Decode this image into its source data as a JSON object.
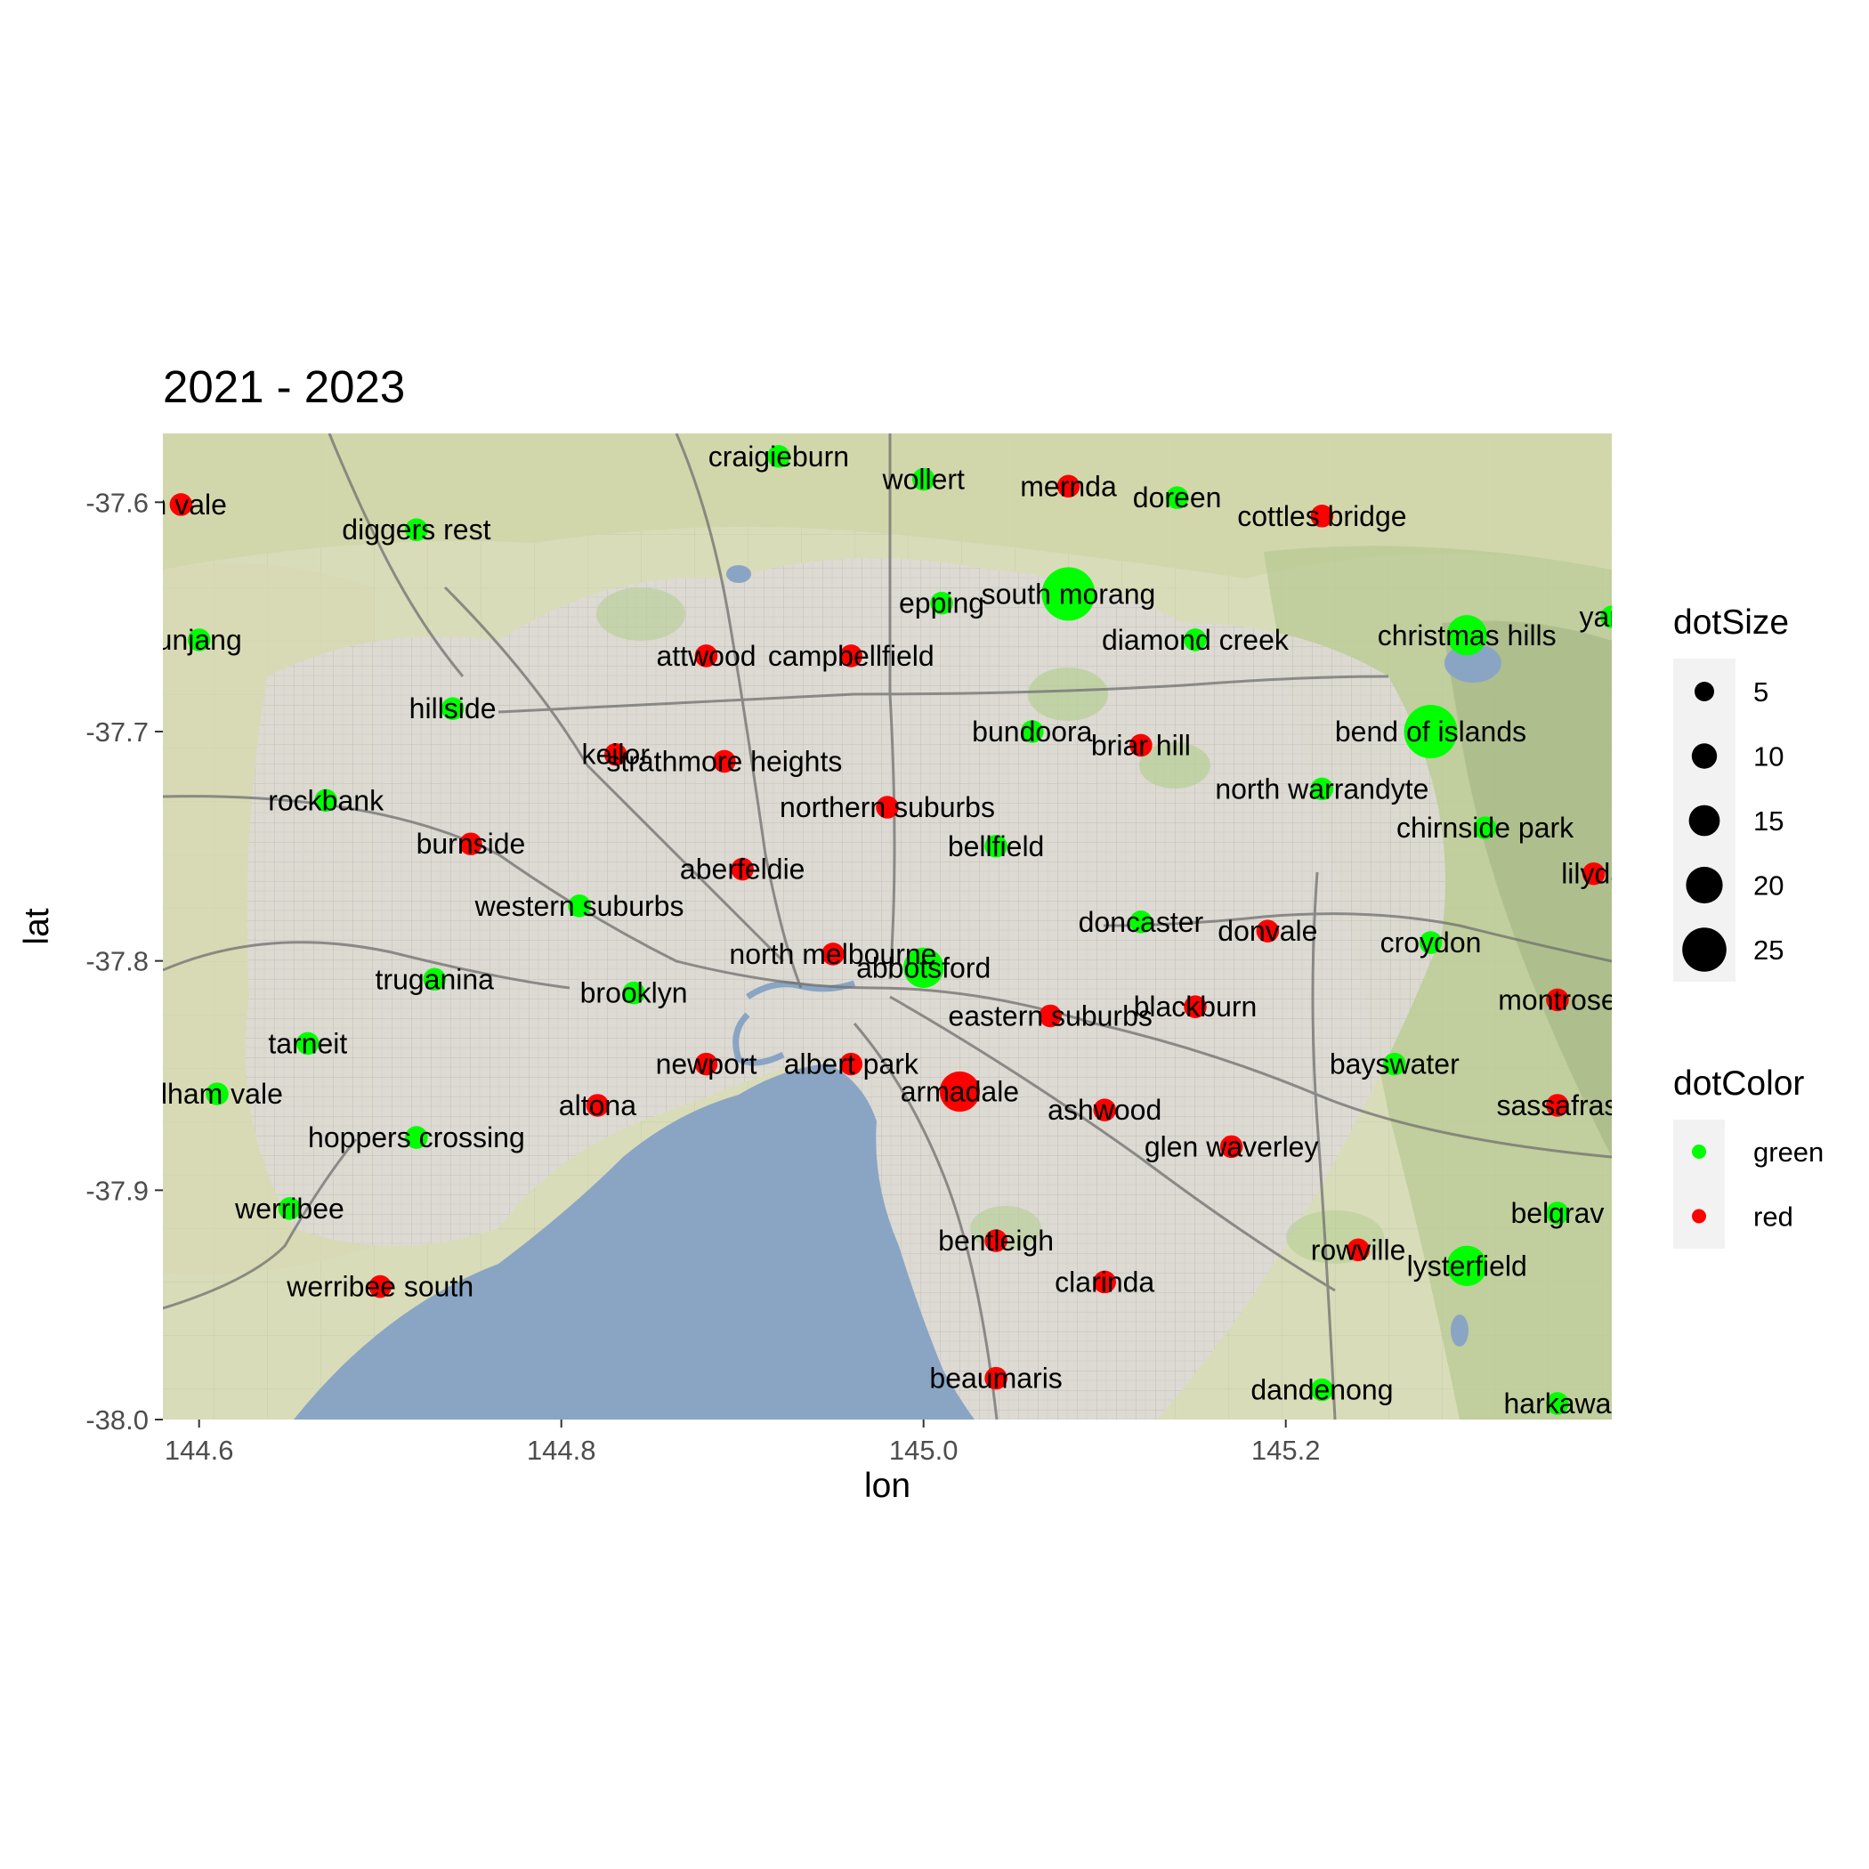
{
  "chart_data": {
    "type": "scatter",
    "title": "2021 - 2023",
    "xlabel": "lon",
    "ylabel": "lat",
    "xlim": [
      144.58,
      145.38
    ],
    "ylim": [
      -38.0,
      -37.57
    ],
    "x_ticks": [
      144.6,
      144.8,
      145.0,
      145.2
    ],
    "x_tick_labels": [
      "144.6",
      "144.8",
      "145.0",
      "145.2"
    ],
    "y_ticks": [
      -37.6,
      -37.7,
      -37.8,
      -37.9,
      -38.0
    ],
    "y_tick_labels": [
      "-37.6",
      "-37.7",
      "-37.8",
      "-37.9",
      "-38.0"
    ],
    "grid": false,
    "background": "street map of Melbourne",
    "colors": {
      "green": "#00ff00",
      "red": "#ff0000",
      "water": "#8aa5c4",
      "land": "#dedcd3"
    },
    "legend_size": {
      "title": "dotSize",
      "placement": "right",
      "entries": [
        {
          "label": "5",
          "value": 5
        },
        {
          "label": "10",
          "value": 10
        },
        {
          "label": "15",
          "value": 15
        },
        {
          "label": "20",
          "value": 20
        },
        {
          "label": "25",
          "value": 25
        }
      ]
    },
    "legend_color": {
      "title": "dotColor",
      "placement": "right",
      "entries": [
        {
          "label": "green",
          "color": "#00ff00"
        },
        {
          "label": "red",
          "color": "#ff0000"
        }
      ]
    },
    "points": [
      {
        "name": "melton vale",
        "label": "en vale",
        "lon": 144.59,
        "lat": -37.601,
        "color": "red",
        "size": 2
      },
      {
        "name": "diggers rest",
        "label": "diggers rest",
        "lon": 144.72,
        "lat": -37.612,
        "color": "green",
        "size": 2
      },
      {
        "name": "craigieburn",
        "label": "craigieburn",
        "lon": 144.92,
        "lat": -37.58,
        "color": "green",
        "size": 2
      },
      {
        "name": "wollert",
        "label": "wollert",
        "lon": 145.0,
        "lat": -37.59,
        "color": "green",
        "size": 2
      },
      {
        "name": "mernda",
        "label": "mernda",
        "lon": 145.08,
        "lat": -37.593,
        "color": "red",
        "size": 2
      },
      {
        "name": "doreen",
        "label": "doreen",
        "lon": 145.14,
        "lat": -37.598,
        "color": "green",
        "size": 2
      },
      {
        "name": "cottles bridge",
        "label": "cottles bridge",
        "lon": 145.22,
        "lat": -37.606,
        "color": "red",
        "size": 2
      },
      {
        "name": "south morang",
        "label": "south morang",
        "lon": 145.08,
        "lat": -37.64,
        "color": "green",
        "size": 25
      },
      {
        "name": "epping",
        "label": "epping",
        "lon": 145.01,
        "lat": -37.644,
        "color": "green",
        "size": 2
      },
      {
        "name": "yarra",
        "label": "yarra",
        "lon": 145.38,
        "lat": -37.65,
        "color": "green",
        "size": 2
      },
      {
        "name": "christmas hills",
        "label": "christmas hills",
        "lon": 145.3,
        "lat": -37.658,
        "color": "green",
        "size": 12
      },
      {
        "name": "diamond creek",
        "label": "diamond creek",
        "lon": 145.15,
        "lat": -37.66,
        "color": "green",
        "size": 2
      },
      {
        "name": "bunjang",
        "label": "unjang",
        "lon": 144.6,
        "lat": -37.66,
        "color": "green",
        "size": 2
      },
      {
        "name": "attwood",
        "label": "attwood",
        "lon": 144.88,
        "lat": -37.667,
        "color": "red",
        "size": 2
      },
      {
        "name": "campbellfield",
        "label": "campbellfield",
        "lon": 144.96,
        "lat": -37.667,
        "color": "red",
        "size": 2
      },
      {
        "name": "hillside",
        "label": "hillside",
        "lon": 144.74,
        "lat": -37.69,
        "color": "green",
        "size": 2
      },
      {
        "name": "bend of islands",
        "label": "bend of islands",
        "lon": 145.28,
        "lat": -37.7,
        "color": "green",
        "size": 25
      },
      {
        "name": "bundoora",
        "label": "bundoora",
        "lon": 145.06,
        "lat": -37.7,
        "color": "green",
        "size": 2
      },
      {
        "name": "briar hill",
        "label": "briar hill",
        "lon": 145.12,
        "lat": -37.706,
        "color": "red",
        "size": 2
      },
      {
        "name": "keilor",
        "label": "keilor",
        "lon": 144.83,
        "lat": -37.71,
        "color": "red",
        "size": 2
      },
      {
        "name": "strathmore heights",
        "label": "strathmore heights",
        "lon": 144.89,
        "lat": -37.713,
        "color": "red",
        "size": 2
      },
      {
        "name": "north warrandyte",
        "label": "north warrandyte",
        "lon": 145.22,
        "lat": -37.725,
        "color": "green",
        "size": 2
      },
      {
        "name": "rockbank",
        "label": "rockbank",
        "lon": 144.67,
        "lat": -37.73,
        "color": "green",
        "size": 2
      },
      {
        "name": "northern suburbs",
        "label": "northern suburbs",
        "lon": 144.98,
        "lat": -37.733,
        "color": "red",
        "size": 2
      },
      {
        "name": "chirnside park",
        "label": "chirnside park",
        "lon": 145.31,
        "lat": -37.742,
        "color": "green",
        "size": 2
      },
      {
        "name": "burnside",
        "label": "burnside",
        "lon": 144.75,
        "lat": -37.749,
        "color": "red",
        "size": 2
      },
      {
        "name": "bellfield",
        "label": "bellfield",
        "lon": 145.04,
        "lat": -37.75,
        "color": "green",
        "size": 2
      },
      {
        "name": "aberfeldie",
        "label": "aberfeldie",
        "lon": 144.9,
        "lat": -37.76,
        "color": "red",
        "size": 2
      },
      {
        "name": "lilydale",
        "label": "lilyda",
        "lon": 145.37,
        "lat": -37.762,
        "color": "red",
        "size": 2
      },
      {
        "name": "western suburbs",
        "label": "western suburbs",
        "lon": 144.81,
        "lat": -37.776,
        "color": "green",
        "size": 2
      },
      {
        "name": "doncaster",
        "label": "doncaster",
        "lon": 145.12,
        "lat": -37.783,
        "color": "green",
        "size": 2
      },
      {
        "name": "donvale",
        "label": "donvale",
        "lon": 145.19,
        "lat": -37.787,
        "color": "red",
        "size": 2
      },
      {
        "name": "croydon",
        "label": "croydon",
        "lon": 145.28,
        "lat": -37.792,
        "color": "green",
        "size": 2
      },
      {
        "name": "north melbourne",
        "label": "north melbourne",
        "lon": 144.95,
        "lat": -37.797,
        "color": "red",
        "size": 2
      },
      {
        "name": "abbotsford",
        "label": "abbotsford",
        "lon": 145.0,
        "lat": -37.803,
        "color": "green",
        "size": 12
      },
      {
        "name": "truganina",
        "label": "truganina",
        "lon": 144.73,
        "lat": -37.808,
        "color": "green",
        "size": 2
      },
      {
        "name": "brooklyn",
        "label": "brooklyn",
        "lon": 144.84,
        "lat": -37.814,
        "color": "green",
        "size": 2
      },
      {
        "name": "montrose",
        "label": "montrose",
        "lon": 145.35,
        "lat": -37.817,
        "color": "red",
        "size": 2
      },
      {
        "name": "blackburn",
        "label": "blackburn",
        "lon": 145.15,
        "lat": -37.82,
        "color": "red",
        "size": 2
      },
      {
        "name": "eastern suburbs",
        "label": "eastern suburbs",
        "lon": 145.07,
        "lat": -37.824,
        "color": "red",
        "size": 2
      },
      {
        "name": "tarneit",
        "label": "tarneit",
        "lon": 144.66,
        "lat": -37.836,
        "color": "green",
        "size": 2
      },
      {
        "name": "newport",
        "label": "newport",
        "lon": 144.88,
        "lat": -37.845,
        "color": "red",
        "size": 2
      },
      {
        "name": "albert park",
        "label": "albert park",
        "lon": 144.96,
        "lat": -37.845,
        "color": "red",
        "size": 2
      },
      {
        "name": "bayswater",
        "label": "bayswater",
        "lon": 145.26,
        "lat": -37.845,
        "color": "green",
        "size": 2
      },
      {
        "name": "armadale",
        "label": "armadale",
        "lon": 145.02,
        "lat": -37.857,
        "color": "red",
        "size": 12
      },
      {
        "name": "wyndham vale",
        "label": "dham vale",
        "lon": 144.61,
        "lat": -37.858,
        "color": "green",
        "size": 2
      },
      {
        "name": "altona",
        "label": "altona",
        "lon": 144.82,
        "lat": -37.863,
        "color": "red",
        "size": 2
      },
      {
        "name": "sassafras",
        "label": "sassafras",
        "lon": 145.35,
        "lat": -37.863,
        "color": "red",
        "size": 2
      },
      {
        "name": "ashwood",
        "label": "ashwood",
        "lon": 145.1,
        "lat": -37.865,
        "color": "red",
        "size": 2
      },
      {
        "name": "hoppers crossing",
        "label": "hoppers crossing",
        "lon": 144.72,
        "lat": -37.877,
        "color": "green",
        "size": 2
      },
      {
        "name": "glen waverley",
        "label": "glen waverley",
        "lon": 145.17,
        "lat": -37.881,
        "color": "red",
        "size": 2
      },
      {
        "name": "werribee",
        "label": "werribee",
        "lon": 144.65,
        "lat": -37.908,
        "color": "green",
        "size": 2
      },
      {
        "name": "belgrave",
        "label": "belgrav",
        "lon": 145.35,
        "lat": -37.91,
        "color": "green",
        "size": 2
      },
      {
        "name": "bentleigh",
        "label": "bentleigh",
        "lon": 145.04,
        "lat": -37.922,
        "color": "red",
        "size": 2
      },
      {
        "name": "rowville",
        "label": "rowville",
        "lon": 145.24,
        "lat": -37.926,
        "color": "red",
        "size": 2
      },
      {
        "name": "lysterfield",
        "label": "lysterfield",
        "lon": 145.3,
        "lat": -37.933,
        "color": "green",
        "size": 12
      },
      {
        "name": "clarinda",
        "label": "clarinda",
        "lon": 145.1,
        "lat": -37.94,
        "color": "red",
        "size": 2
      },
      {
        "name": "werribee south",
        "label": "werribee south",
        "lon": 144.7,
        "lat": -37.942,
        "color": "red",
        "size": 2
      },
      {
        "name": "beaumaris",
        "label": "beaumaris",
        "lon": 145.04,
        "lat": -37.982,
        "color": "red",
        "size": 2
      },
      {
        "name": "dandenong",
        "label": "dandenong",
        "lon": 145.22,
        "lat": -37.987,
        "color": "green",
        "size": 2
      },
      {
        "name": "harkaway",
        "label": "harkawa",
        "lon": 145.35,
        "lat": -37.993,
        "color": "green",
        "size": 2
      }
    ]
  }
}
